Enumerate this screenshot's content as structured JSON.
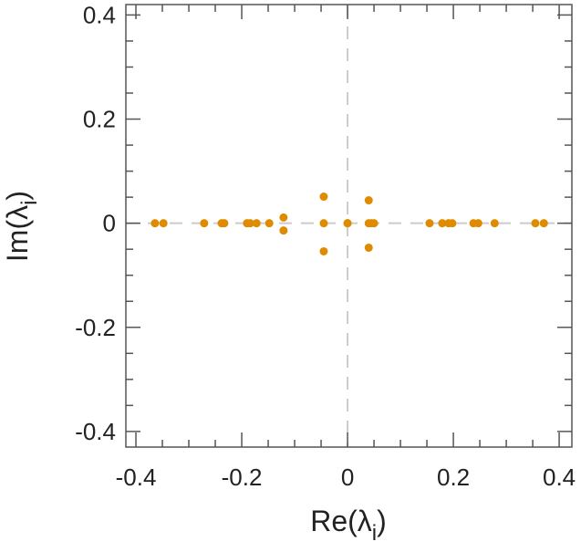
{
  "chart_data": {
    "type": "scatter",
    "title": "",
    "xlabel": "Re(λ",
    "xlabel_sub": "i",
    "ylabel": "Im(λ",
    "ylabel_sub": "i",
    "xlim": [
      -0.419,
      0.424
    ],
    "ylim": [
      -0.43,
      0.42
    ],
    "xticks": [
      -0.4,
      -0.2,
      0,
      0.2,
      0.4
    ],
    "yticks": [
      -0.4,
      -0.2,
      0,
      0.2,
      0.4
    ],
    "xtick_labels": [
      "-0.4",
      "-0.2",
      "0",
      "0.2",
      "0.4"
    ],
    "ytick_labels": [
      "-0.4",
      "-0.2",
      "0",
      "0.2",
      "0.4"
    ],
    "minor_step": 0.05,
    "grid": false,
    "zero_lines": true,
    "color": "#e08a00",
    "points": [
      [
        -0.364,
        0
      ],
      [
        -0.348,
        0
      ],
      [
        -0.271,
        0
      ],
      [
        -0.238,
        0
      ],
      [
        -0.233,
        0
      ],
      [
        -0.19,
        0
      ],
      [
        -0.184,
        0
      ],
      [
        -0.172,
        0
      ],
      [
        -0.148,
        0
      ],
      [
        -0.121,
        0.011
      ],
      [
        -0.121,
        -0.014
      ],
      [
        -0.045,
        0.051
      ],
      [
        -0.045,
        0
      ],
      [
        -0.045,
        -0.054
      ],
      [
        0,
        0
      ],
      [
        0,
        0
      ],
      [
        0.04,
        0.044
      ],
      [
        0.04,
        -0.047
      ],
      [
        0.04,
        0
      ],
      [
        0.045,
        0
      ],
      [
        0.05,
        0
      ],
      [
        0.155,
        0
      ],
      [
        0.179,
        0
      ],
      [
        0.191,
        0
      ],
      [
        0.198,
        0
      ],
      [
        0.238,
        0
      ],
      [
        0.247,
        0
      ],
      [
        0.278,
        0
      ],
      [
        0.355,
        0
      ],
      [
        0.371,
        0
      ]
    ]
  }
}
